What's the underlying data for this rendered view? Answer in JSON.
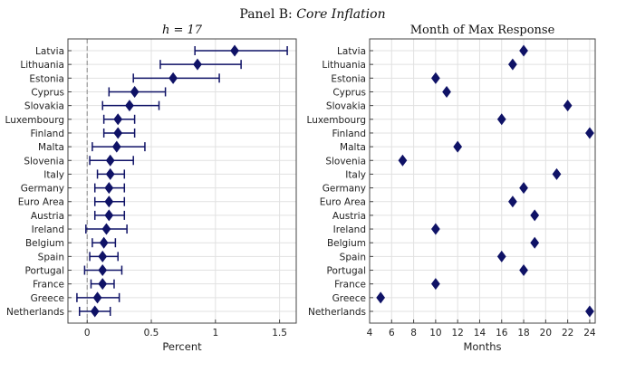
{
  "figure": {
    "panel_label": "Panel B: ",
    "panel_name": "Core Inflation"
  },
  "chart_data": [
    {
      "type": "scatter",
      "subtype": "dot-and-whisker",
      "title": "h = 17",
      "xlabel": "Percent",
      "ylabel": "",
      "xlim": [
        -0.15,
        1.63
      ],
      "xticks": [
        0,
        0.5,
        1,
        1.5
      ],
      "xtick_labels": [
        "0",
        "0.5",
        "1",
        "1.5"
      ],
      "reference_line": {
        "x": 0,
        "style": "dashed"
      },
      "grid": true,
      "marker": "diamond",
      "color": "#0f1266",
      "categories": [
        "Latvia",
        "Lithuania",
        "Estonia",
        "Cyprus",
        "Slovakia",
        "Luxembourg",
        "Finland",
        "Malta",
        "Slovenia",
        "Italy",
        "Germany",
        "Euro Area",
        "Austria",
        "Ireland",
        "Belgium",
        "Spain",
        "Portugal",
        "France",
        "Greece",
        "Netherlands"
      ],
      "values": [
        1.15,
        0.86,
        0.67,
        0.37,
        0.33,
        0.24,
        0.24,
        0.23,
        0.18,
        0.18,
        0.17,
        0.17,
        0.17,
        0.15,
        0.13,
        0.12,
        0.12,
        0.12,
        0.08,
        0.06
      ],
      "lower": [
        0.84,
        0.57,
        0.36,
        0.17,
        0.12,
        0.13,
        0.13,
        0.04,
        0.02,
        0.08,
        0.06,
        0.06,
        0.06,
        -0.01,
        0.04,
        0.02,
        -0.02,
        0.03,
        -0.08,
        -0.06
      ],
      "upper": [
        1.56,
        1.2,
        1.03,
        0.61,
        0.56,
        0.37,
        0.37,
        0.45,
        0.36,
        0.29,
        0.29,
        0.29,
        0.29,
        0.31,
        0.22,
        0.24,
        0.27,
        0.21,
        0.25,
        0.18
      ]
    },
    {
      "type": "scatter",
      "title": "Month of Max Response",
      "xlabel": "Months",
      "ylabel": "",
      "xlim": [
        4,
        24.5
      ],
      "xticks": [
        4,
        6,
        8,
        10,
        12,
        14,
        16,
        18,
        20,
        22,
        24
      ],
      "xtick_labels": [
        "4",
        "6",
        "8",
        "10",
        "12",
        "14",
        "16",
        "18",
        "20",
        "22",
        "24"
      ],
      "grid": true,
      "marker": "diamond",
      "color": "#0f1266",
      "categories": [
        "Latvia",
        "Lithuania",
        "Estonia",
        "Cyprus",
        "Slovakia",
        "Luxembourg",
        "Finland",
        "Malta",
        "Slovenia",
        "Italy",
        "Germany",
        "Euro Area",
        "Austria",
        "Ireland",
        "Belgium",
        "Spain",
        "Portugal",
        "France",
        "Greece",
        "Netherlands"
      ],
      "values": [
        18,
        17,
        10,
        11,
        22,
        16,
        24,
        12,
        7,
        21,
        18,
        17,
        19,
        10,
        19,
        16,
        18,
        10,
        5,
        24
      ]
    }
  ]
}
